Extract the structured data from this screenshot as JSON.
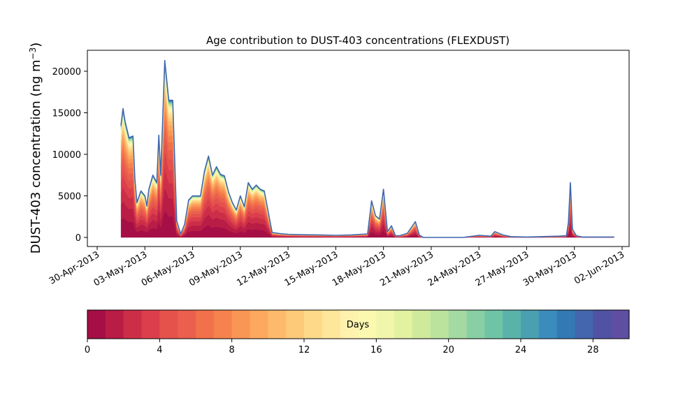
{
  "chart_data": {
    "type": "area",
    "stacked": true,
    "title": "Age contribution to DUST-403 concentrations (FLEXDUST)",
    "ylabel": "DUST-403 concentration (ng m",
    "ylabel_superscript": "−3",
    "ylabel_suffix": ")",
    "xlabel": "",
    "x_axis": "date",
    "xlim": [
      "2013-04-30T00:00",
      "2013-06-02T00:00"
    ],
    "ylim": [
      0,
      22500
    ],
    "grid": false,
    "x_ticks": [
      "30-Apr-2013",
      "03-May-2013",
      "06-May-2013",
      "09-May-2013",
      "12-May-2013",
      "15-May-2013",
      "18-May-2013",
      "21-May-2013",
      "24-May-2013",
      "27-May-2013",
      "30-May-2013",
      "02-Jun-2013"
    ],
    "y_ticks": [
      "0",
      "5000",
      "10000",
      "15000",
      "20000"
    ],
    "y_tick_values": [
      0,
      5000,
      10000,
      15000,
      20000
    ],
    "total_series": {
      "name": "",
      "x": [
        "2013-05-01T12:00",
        "2013-05-01T15:00",
        "2013-05-01T18:00",
        "2013-05-02T00:00",
        "2013-05-02T06:00",
        "2013-05-02T09:00",
        "2013-05-02T12:00",
        "2013-05-02T18:00",
        "2013-05-03T00:00",
        "2013-05-03T03:00",
        "2013-05-03T06:00",
        "2013-05-03T12:00",
        "2013-05-03T18:00",
        "2013-05-03T21:00",
        "2013-05-04T00:00",
        "2013-05-04T06:00",
        "2013-05-04T12:00",
        "2013-05-04T18:00",
        "2013-05-05T00:00",
        "2013-05-05T06:00",
        "2013-05-05T12:00",
        "2013-05-05T18:00",
        "2013-05-06T00:00",
        "2013-05-06T12:00",
        "2013-05-06T18:00",
        "2013-05-07T00:00",
        "2013-05-07T06:00",
        "2013-05-07T12:00",
        "2013-05-07T18:00",
        "2013-05-08T00:00",
        "2013-05-08T06:00",
        "2013-05-08T12:00",
        "2013-05-08T18:00",
        "2013-05-09T00:00",
        "2013-05-09T06:00",
        "2013-05-09T12:00",
        "2013-05-09T18:00",
        "2013-05-10T00:00",
        "2013-05-10T06:00",
        "2013-05-10T12:00",
        "2013-05-11T00:00",
        "2013-05-11T12:00",
        "2013-05-12T00:00",
        "2013-05-13T00:00",
        "2013-05-14T00:00",
        "2013-05-15T00:00",
        "2013-05-16T00:00",
        "2013-05-17T00:00",
        "2013-05-17T06:00",
        "2013-05-17T12:00",
        "2013-05-17T18:00",
        "2013-05-18T00:00",
        "2013-05-18T06:00",
        "2013-05-18T12:00",
        "2013-05-18T18:00",
        "2013-05-19T00:00",
        "2013-05-19T12:00",
        "2013-05-20T00:00",
        "2013-05-20T06:00",
        "2013-05-20T12:00",
        "2013-05-20T18:00",
        "2013-05-21T00:00",
        "2013-05-22T00:00",
        "2013-05-23T00:00",
        "2013-05-24T00:00",
        "2013-05-24T18:00",
        "2013-05-25T00:00",
        "2013-05-25T12:00",
        "2013-05-26T00:00",
        "2013-05-27T00:00",
        "2013-05-28T00:00",
        "2013-05-29T00:00",
        "2013-05-29T12:00",
        "2013-05-29T15:00",
        "2013-05-29T18:00",
        "2013-05-29T21:00",
        "2013-05-30T03:00",
        "2013-05-30T12:00",
        "2013-05-31T00:00",
        "2013-06-01T00:00",
        "2013-06-01T12:00"
      ],
      "y": [
        13500,
        15500,
        14000,
        12000,
        12200,
        7000,
        4200,
        5600,
        5000,
        3800,
        5800,
        7500,
        6600,
        12300,
        7500,
        21300,
        16500,
        16500,
        2000,
        400,
        1600,
        4500,
        5000,
        5000,
        8000,
        9800,
        7500,
        8500,
        7600,
        7400,
        5500,
        4200,
        3300,
        5000,
        3700,
        6600,
        5800,
        6300,
        5800,
        5600,
        600,
        450,
        380,
        320,
        300,
        250,
        300,
        420,
        4400,
        2600,
        2200,
        5800,
        700,
        1400,
        200,
        200,
        500,
        1900,
        300,
        0,
        0,
        0,
        0,
        0,
        250,
        150,
        700,
        300,
        100,
        50,
        100,
        150,
        200,
        1800,
        6600,
        1000,
        200,
        50,
        50,
        50,
        50
      ]
    },
    "colorbar": {
      "label": "Days",
      "ticks": [
        "0",
        "4",
        "8",
        "12",
        "16",
        "20",
        "24",
        "28"
      ],
      "tick_values": [
        0,
        4,
        8,
        12,
        16,
        20,
        24,
        28
      ],
      "range": [
        0,
        30
      ],
      "bins": 30,
      "colormap": "Spectral",
      "colors": [
        "#a50f45",
        "#b91c45",
        "#cc2e48",
        "#dc3f4b",
        "#e5524c",
        "#ea5f4d",
        "#f1714a",
        "#f6834e",
        "#f99656",
        "#fca85e",
        "#fdba6c",
        "#fdca7a",
        "#fed98a",
        "#fee69a",
        "#fff2ae",
        "#fbf8b0",
        "#f0f7ad",
        "#e2f2a0",
        "#d0ea9c",
        "#bbe39e",
        "#a4d9a2",
        "#88cfa4",
        "#70c4a6",
        "#5bb2a9",
        "#4aa0b1",
        "#3b8cbc",
        "#3379b4",
        "#4366ae",
        "#5052a3",
        "#5e4fa2"
      ]
    },
    "total_line_color": "#3f66ae"
  }
}
